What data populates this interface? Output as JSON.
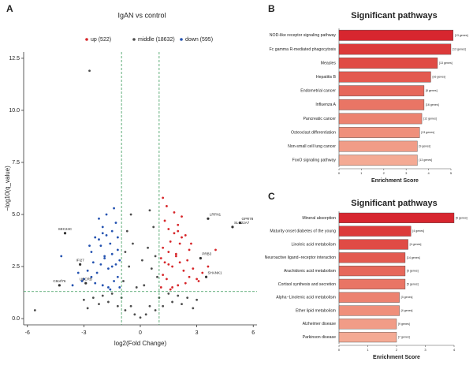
{
  "chart_data": [
    {
      "type": "scatter",
      "label": "A",
      "title": "IgAN vs control",
      "xlabel": "log2(Fold Change)",
      "ylabel": "−log10(q_value)",
      "xlim": [
        -6.2,
        6.2
      ],
      "xticks": [
        -6,
        -3,
        0,
        3,
        6
      ],
      "ylim": [
        -0.3,
        12.8
      ],
      "yticks": [
        {
          "value": 0,
          "label": "0.0"
        },
        2.5,
        {
          "value": 5,
          "label": "5.0"
        },
        7.5,
        {
          "value": 10,
          "label": "10.0"
        },
        12.5
      ],
      "thresholds": {
        "x": [
          -1,
          1
        ],
        "y": 1.3,
        "color": "#3a9a5a"
      },
      "series": [
        {
          "name": "up (522)",
          "color": "#d7262a",
          "x": [
            1.1,
            1.2,
            1.3,
            1.5,
            1.6,
            1.8,
            2.0,
            2.2,
            2.4,
            2.6,
            1.4,
            1.7,
            1.9,
            2.1,
            2.3,
            1.2,
            1.5,
            1.8,
            2.0,
            2.5,
            1.3,
            1.6,
            2.2,
            2.8,
            3.0,
            1.1,
            1.4,
            1.9,
            2.4,
            2.7,
            3.3,
            3.6,
            1.5,
            2.0,
            2.6,
            1.2,
            1.7,
            2.1,
            3.1,
            4.0
          ],
          "values": [
            1.5,
            2.1,
            2.7,
            3.2,
            3.7,
            4.1,
            4.5,
            4.9,
            4.0,
            3.3,
            1.9,
            2.5,
            3.0,
            3.6,
            2.3,
            3.4,
            4.3,
            5.1,
            1.6,
            2.8,
            4.7,
            1.4,
            3.9,
            2.4,
            1.9,
            2.9,
            5.4,
            3.1,
            1.7,
            3.6,
            2.2,
            2.5,
            2.6,
            4.2,
            2.0,
            5.8,
            1.5,
            2.7,
            1.8,
            3.3
          ]
        },
        {
          "name": "middle (18632)",
          "color": "#4d4d4d",
          "x": [
            -3.0,
            -2.5,
            -2.0,
            -1.5,
            -1.0,
            -0.5,
            0,
            0.5,
            1.0,
            1.5,
            2.0,
            2.5,
            3.0,
            -2.8,
            -2.2,
            -1.7,
            -1.2,
            -0.8,
            -0.3,
            0.3,
            0.8,
            1.2,
            1.7,
            2.2,
            2.8,
            -0.9,
            -0.6,
            -0.2,
            0.2,
            0.6,
            0.9,
            -0.8,
            -0.4,
            0.4,
            0.8,
            -0.7,
            0.7,
            -0.5,
            0.5,
            0.1,
            -2.7,
            -5.6
          ],
          "values": [
            0.9,
            1.0,
            1.1,
            1.2,
            1.0,
            0.6,
            0.05,
            0.6,
            1.0,
            1.2,
            1.1,
            1.0,
            0.9,
            0.5,
            0.7,
            0.8,
            0.6,
            0.4,
            0.2,
            0.2,
            0.4,
            0.6,
            0.8,
            0.7,
            0.5,
            1.8,
            2.5,
            1.5,
            1.6,
            2.4,
            2.0,
            3.2,
            3.6,
            3.4,
            3.0,
            4.2,
            4.4,
            5.0,
            5.2,
            2.8,
            11.9,
            0.4
          ]
        },
        {
          "name": "down (595)",
          "color": "#2452b0",
          "x": [
            -1.1,
            -1.2,
            -1.3,
            -1.5,
            -1.6,
            -1.8,
            -2.0,
            -2.2,
            -2.4,
            -2.6,
            -1.4,
            -1.7,
            -1.9,
            -2.1,
            -2.3,
            -1.2,
            -1.5,
            -1.8,
            -2.0,
            -2.5,
            -1.3,
            -1.6,
            -2.2,
            -2.8,
            -3.0,
            -1.1,
            -1.4,
            -1.9,
            -2.4,
            -2.7,
            -3.3,
            -3.6,
            -1.5,
            -2.0,
            -2.6,
            -1.2,
            -1.7,
            -2.1,
            -3.1,
            -4.2
          ],
          "values": [
            1.5,
            2.0,
            2.6,
            3.1,
            3.6,
            4.0,
            4.4,
            4.8,
            3.9,
            3.2,
            1.8,
            2.4,
            2.9,
            3.5,
            2.2,
            3.3,
            4.2,
            5.0,
            1.6,
            2.7,
            4.6,
            1.4,
            3.8,
            2.3,
            1.9,
            2.8,
            5.3,
            3.0,
            1.7,
            3.5,
            2.2,
            1.6,
            2.5,
            4.1,
            2.0,
            3.9,
            1.5,
            2.6,
            1.8,
            3.0
          ]
        }
      ],
      "labeled_points": [
        {
          "text": "SEC24C",
          "x": -4.0,
          "y": 4.1
        },
        {
          "text": "IFI27",
          "x": -3.2,
          "y": 2.6
        },
        {
          "text": "C8orf76",
          "x": -4.3,
          "y": 1.6
        },
        {
          "text": "UQCRB",
          "x": -2.9,
          "y": 1.7
        },
        {
          "text": "LRFN1",
          "x": 3.6,
          "y": 4.8
        },
        {
          "text": "GPR78",
          "x": 5.3,
          "y": 4.6
        },
        {
          "text": "SLC22A7",
          "x": 4.9,
          "y": 4.4
        },
        {
          "text": "PRB3",
          "x": 3.2,
          "y": 2.9
        },
        {
          "text": "SHANK1",
          "x": 3.5,
          "y": 2.0
        }
      ]
    },
    {
      "type": "barh",
      "label": "B",
      "title": "Significant pathways",
      "xlabel": "Enrichment Score",
      "xlim": [
        0,
        5
      ],
      "xticks": [
        0,
        1,
        2,
        3,
        4,
        5
      ],
      "categories": [
        "NOD-like receptor signaling pathway",
        "Fc gamma R-mediated phagocytosis",
        "Measles",
        "Hepatitis B",
        "Endometrial cancer",
        "Influenza A",
        "Pancreatic cancer",
        "Osteoclast differentiation",
        "Non-small cell lung cancer",
        "FoxO signaling pathway"
      ],
      "values": [
        5.1,
        5.0,
        4.4,
        4.1,
        3.8,
        3.8,
        3.7,
        3.6,
        3.5,
        3.5
      ],
      "genes": [
        "[13 genes]",
        "[13 genes]",
        "[13 genes]",
        "[16 genes]",
        "[8 genes]",
        "[16 genes]",
        "[12 genes]",
        "[13 genes]",
        "[9 genes]",
        "[13 genes]"
      ],
      "colors": [
        "#d7262f",
        "#dc3a3a",
        "#e04b45",
        "#e35a50",
        "#e6685b",
        "#e97565",
        "#ec8270",
        "#ef8f7b",
        "#f19c87",
        "#f4aa94"
      ]
    },
    {
      "type": "barh",
      "label": "C",
      "title": "Significant pathways",
      "xlabel": "Enrichment Score",
      "xlim": [
        0,
        4
      ],
      "xticks": [
        0,
        1,
        2,
        3,
        4
      ],
      "categories": [
        "Mineral absorption",
        "Maturity onset diabetes of the young",
        "Linoleic acid metabolism",
        "Neuroactive ligand−receptor interaction",
        "Arachidonic acid metabolism",
        "Cortisol synthesis and secretion",
        "Alpha−Linolenic acid metabolism",
        "Ether lipid metabolism",
        "Alzheimer disease",
        "Parkinson disease"
      ],
      "values": [
        4.0,
        2.5,
        2.4,
        2.3,
        2.3,
        2.3,
        2.1,
        2.1,
        2.0,
        2.0
      ],
      "genes": [
        "[6 genes]",
        "[4 genes]",
        "[4 genes]",
        "[14 genes]",
        "[5 genes]",
        "[5 genes]",
        "[3 genes]",
        "[4 genes]",
        "[9 genes]",
        "[7 genes]"
      ],
      "colors": [
        "#d7262f",
        "#dc3a3a",
        "#e04b45",
        "#e35a50",
        "#e6685b",
        "#e97565",
        "#ec8270",
        "#ef8f7b",
        "#f19c87",
        "#f4aa94"
      ]
    }
  ]
}
